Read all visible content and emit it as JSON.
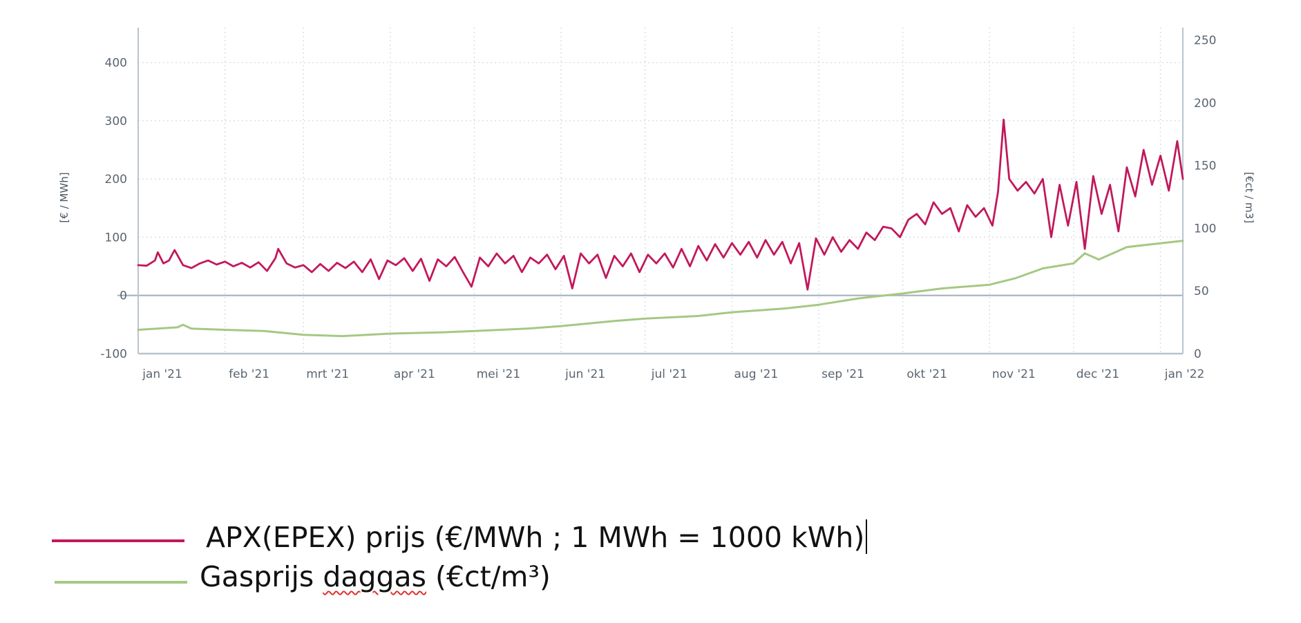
{
  "colors": {
    "electricity": "#c2185b",
    "gas": "#a5c882",
    "axis": "#b8c4ce",
    "zero_line": "#a9b6c1"
  },
  "legend": {
    "electricity_label": "APX(EPEX) prijs (€/MWh ; 1 MWh = 1000 kWh)",
    "gas_label_before": "Gasprijs ",
    "gas_label_word": "daggas",
    "gas_label_after": " (€ct/m³)"
  },
  "chart_data": {
    "type": "line",
    "title": "",
    "xlabel": "",
    "ylabel": "[€ / MWh]",
    "ylabel_right": "[€ct / m3]",
    "ylim": [
      -100,
      460
    ],
    "ylim_right": [
      0,
      260
    ],
    "xlim": [
      "2021-01-01",
      "2022-01-09"
    ],
    "x_ticks": [
      {
        "date": "2021-01-01",
        "label": "jan '21"
      },
      {
        "date": "2021-02-01",
        "label": "feb '21"
      },
      {
        "date": "2021-03-01",
        "label": "mrt '21"
      },
      {
        "date": "2021-04-01",
        "label": "apr '21"
      },
      {
        "date": "2021-05-01",
        "label": "mei '21"
      },
      {
        "date": "2021-06-01",
        "label": "jun '21"
      },
      {
        "date": "2021-07-01",
        "label": "jul '21"
      },
      {
        "date": "2021-08-01",
        "label": "aug '21"
      },
      {
        "date": "2021-09-01",
        "label": "sep '21"
      },
      {
        "date": "2021-10-01",
        "label": "okt '21"
      },
      {
        "date": "2021-11-01",
        "label": "nov '21"
      },
      {
        "date": "2021-12-01",
        "label": "dec '21"
      },
      {
        "date": "2022-01-01",
        "label": "jan '22"
      }
    ],
    "y_ticks_left": [
      -100,
      0,
      100,
      200,
      300,
      400
    ],
    "y_ticks_right": [
      0,
      50,
      100,
      150,
      200,
      250
    ],
    "grid": true,
    "legend_position": "below",
    "series": [
      {
        "name": "APX(EPEX) prijs (€/MWh ; 1 MWh = 1000 kWh)",
        "axis": "left",
        "points": [
          [
            "2021-01-01",
            52
          ],
          [
            "2021-01-04",
            51
          ],
          [
            "2021-01-07",
            60
          ],
          [
            "2021-01-08",
            74
          ],
          [
            "2021-01-10",
            55
          ],
          [
            "2021-01-12",
            60
          ],
          [
            "2021-01-14",
            78
          ],
          [
            "2021-01-17",
            52
          ],
          [
            "2021-01-20",
            47
          ],
          [
            "2021-01-23",
            55
          ],
          [
            "2021-01-26",
            60
          ],
          [
            "2021-01-29",
            53
          ],
          [
            "2021-02-01",
            58
          ],
          [
            "2021-02-04",
            50
          ],
          [
            "2021-02-07",
            56
          ],
          [
            "2021-02-10",
            48
          ],
          [
            "2021-02-13",
            57
          ],
          [
            "2021-02-16",
            42
          ],
          [
            "2021-02-19",
            64
          ],
          [
            "2021-02-20",
            80
          ],
          [
            "2021-02-23",
            55
          ],
          [
            "2021-02-26",
            48
          ],
          [
            "2021-03-01",
            52
          ],
          [
            "2021-03-04",
            40
          ],
          [
            "2021-03-07",
            54
          ],
          [
            "2021-03-10",
            42
          ],
          [
            "2021-03-13",
            56
          ],
          [
            "2021-03-16",
            47
          ],
          [
            "2021-03-19",
            58
          ],
          [
            "2021-03-22",
            40
          ],
          [
            "2021-03-25",
            62
          ],
          [
            "2021-03-28",
            28
          ],
          [
            "2021-03-31",
            60
          ],
          [
            "2021-04-03",
            52
          ],
          [
            "2021-04-06",
            64
          ],
          [
            "2021-04-09",
            42
          ],
          [
            "2021-04-12",
            63
          ],
          [
            "2021-04-15",
            25
          ],
          [
            "2021-04-18",
            62
          ],
          [
            "2021-04-21",
            50
          ],
          [
            "2021-04-24",
            66
          ],
          [
            "2021-04-27",
            40
          ],
          [
            "2021-04-30",
            15
          ],
          [
            "2021-05-03",
            65
          ],
          [
            "2021-05-06",
            50
          ],
          [
            "2021-05-09",
            72
          ],
          [
            "2021-05-12",
            55
          ],
          [
            "2021-05-15",
            68
          ],
          [
            "2021-05-18",
            40
          ],
          [
            "2021-05-21",
            65
          ],
          [
            "2021-05-24",
            55
          ],
          [
            "2021-05-27",
            70
          ],
          [
            "2021-05-30",
            45
          ],
          [
            "2021-06-02",
            68
          ],
          [
            "2021-06-05",
            12
          ],
          [
            "2021-06-08",
            72
          ],
          [
            "2021-06-11",
            55
          ],
          [
            "2021-06-14",
            70
          ],
          [
            "2021-06-17",
            30
          ],
          [
            "2021-06-20",
            68
          ],
          [
            "2021-06-23",
            50
          ],
          [
            "2021-06-26",
            72
          ],
          [
            "2021-06-29",
            40
          ],
          [
            "2021-07-02",
            70
          ],
          [
            "2021-07-05",
            55
          ],
          [
            "2021-07-08",
            72
          ],
          [
            "2021-07-11",
            48
          ],
          [
            "2021-07-14",
            80
          ],
          [
            "2021-07-17",
            50
          ],
          [
            "2021-07-20",
            85
          ],
          [
            "2021-07-23",
            60
          ],
          [
            "2021-07-26",
            88
          ],
          [
            "2021-07-29",
            65
          ],
          [
            "2021-08-01",
            90
          ],
          [
            "2021-08-04",
            70
          ],
          [
            "2021-08-07",
            92
          ],
          [
            "2021-08-10",
            65
          ],
          [
            "2021-08-13",
            95
          ],
          [
            "2021-08-16",
            70
          ],
          [
            "2021-08-19",
            92
          ],
          [
            "2021-08-22",
            55
          ],
          [
            "2021-08-25",
            90
          ],
          [
            "2021-08-28",
            10
          ],
          [
            "2021-08-31",
            98
          ],
          [
            "2021-09-03",
            70
          ],
          [
            "2021-09-06",
            100
          ],
          [
            "2021-09-09",
            75
          ],
          [
            "2021-09-12",
            95
          ],
          [
            "2021-09-15",
            80
          ],
          [
            "2021-09-18",
            108
          ],
          [
            "2021-09-21",
            95
          ],
          [
            "2021-09-24",
            118
          ],
          [
            "2021-09-27",
            115
          ],
          [
            "2021-09-30",
            100
          ],
          [
            "2021-10-03",
            130
          ],
          [
            "2021-10-06",
            140
          ],
          [
            "2021-10-09",
            122
          ],
          [
            "2021-10-12",
            160
          ],
          [
            "2021-10-15",
            140
          ],
          [
            "2021-10-18",
            150
          ],
          [
            "2021-10-21",
            110
          ],
          [
            "2021-10-24",
            155
          ],
          [
            "2021-10-27",
            135
          ],
          [
            "2021-10-30",
            150
          ],
          [
            "2021-11-02",
            120
          ],
          [
            "2021-11-04",
            178
          ],
          [
            "2021-11-06",
            302
          ],
          [
            "2021-11-08",
            200
          ],
          [
            "2021-11-11",
            180
          ],
          [
            "2021-11-14",
            195
          ],
          [
            "2021-11-17",
            175
          ],
          [
            "2021-11-20",
            200
          ],
          [
            "2021-11-23",
            100
          ],
          [
            "2021-11-26",
            190
          ],
          [
            "2021-11-29",
            120
          ],
          [
            "2021-12-02",
            195
          ],
          [
            "2021-12-05",
            80
          ],
          [
            "2021-12-08",
            205
          ],
          [
            "2021-12-11",
            140
          ],
          [
            "2021-12-14",
            190
          ],
          [
            "2021-12-17",
            110
          ],
          [
            "2021-12-20",
            220
          ],
          [
            "2021-12-23",
            170
          ],
          [
            "2021-12-26",
            250
          ],
          [
            "2021-12-29",
            190
          ],
          [
            "2022-01-01",
            240
          ],
          [
            "2022-01-04",
            180
          ],
          [
            "2022-01-07",
            265
          ],
          [
            "2022-01-09",
            200
          ]
        ]
      },
      {
        "name": "Gasprijs daggas (€ct/m³)",
        "axis": "right",
        "points": [
          [
            "2021-01-01",
            19
          ],
          [
            "2021-01-15",
            21
          ],
          [
            "2021-01-17",
            23
          ],
          [
            "2021-01-20",
            20
          ],
          [
            "2021-02-01",
            19
          ],
          [
            "2021-02-15",
            18
          ],
          [
            "2021-03-01",
            15
          ],
          [
            "2021-03-15",
            14
          ],
          [
            "2021-04-01",
            16
          ],
          [
            "2021-04-20",
            17
          ],
          [
            "2021-05-01",
            18
          ],
          [
            "2021-05-20",
            20
          ],
          [
            "2021-06-01",
            22
          ],
          [
            "2021-06-20",
            26
          ],
          [
            "2021-07-01",
            28
          ],
          [
            "2021-07-20",
            30
          ],
          [
            "2021-08-01",
            33
          ],
          [
            "2021-08-20",
            36
          ],
          [
            "2021-09-01",
            39
          ],
          [
            "2021-09-15",
            44
          ],
          [
            "2021-10-01",
            48
          ],
          [
            "2021-10-15",
            52
          ],
          [
            "2021-11-01",
            55
          ],
          [
            "2021-11-10",
            60
          ],
          [
            "2021-11-20",
            68
          ],
          [
            "2021-12-01",
            72
          ],
          [
            "2021-12-05",
            80
          ],
          [
            "2021-12-10",
            75
          ],
          [
            "2021-12-20",
            85
          ],
          [
            "2022-01-01",
            88
          ],
          [
            "2022-01-09",
            90
          ]
        ]
      }
    ]
  }
}
